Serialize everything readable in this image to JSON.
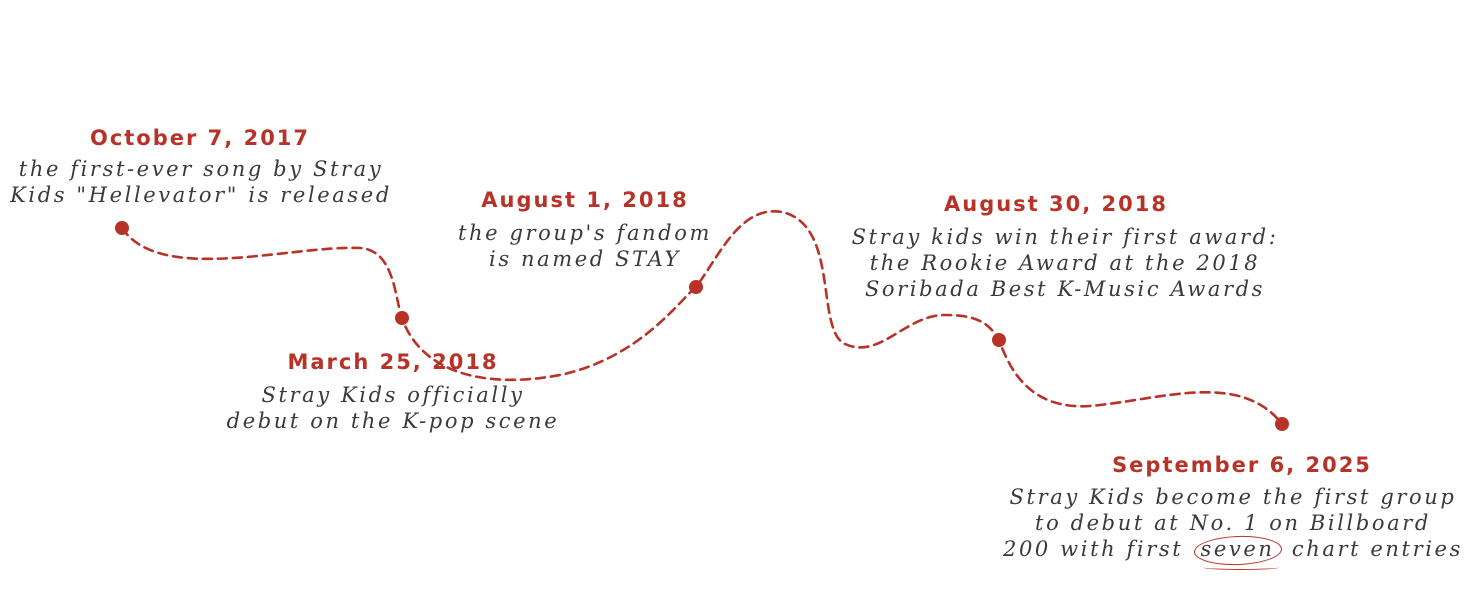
{
  "style": {
    "accent_color": "#b83228",
    "text_color": "#3a3a3a",
    "background": "#ffffff"
  },
  "milestones": [
    {
      "date": "October 7, 2017",
      "lines": [
        "the first-ever song by Stray",
        "Kids \"Hellevator\" is released"
      ]
    },
    {
      "date": "March 25, 2018",
      "lines": [
        "Stray Kids officially",
        "debut on the K-pop scene"
      ]
    },
    {
      "date": "August 1, 2018",
      "lines": [
        "the group's fandom",
        "is named STAY"
      ]
    },
    {
      "date": "August 30, 2018",
      "lines": [
        "Stray kids win their first award:",
        "the Rookie Award at the 2018",
        "Soribada Best K-Music Awards"
      ]
    },
    {
      "date": "September 6, 2025",
      "lines": [
        "Stray Kids become the first group",
        "to debut at No. 1 on Billboard"
      ],
      "line3_before": "200 with first",
      "line3_highlight": "seven",
      "line3_after": "chart entries"
    }
  ]
}
